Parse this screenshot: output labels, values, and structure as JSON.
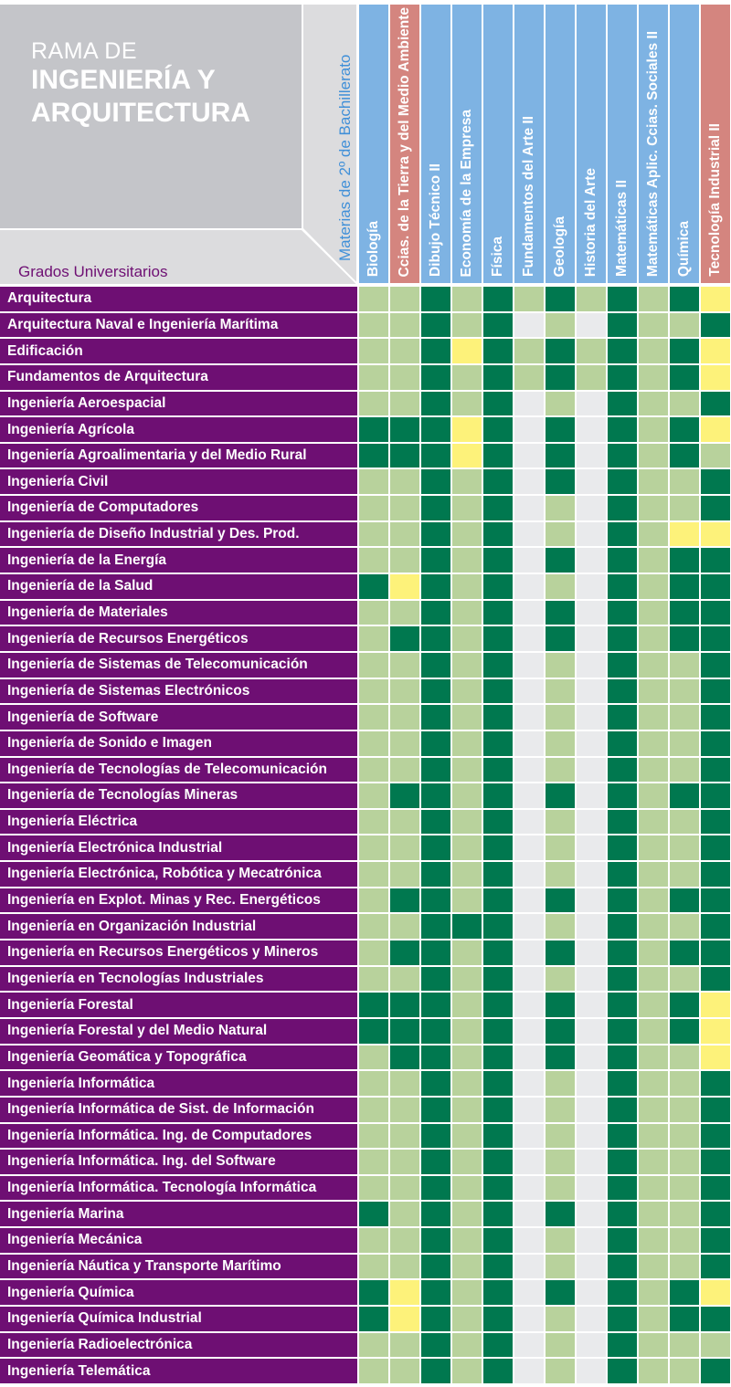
{
  "header": {
    "rama_line1": "RAMA DE",
    "rama_line2": "INGENIERÍA Y",
    "rama_line3": "ARQUITECTURA",
    "row_header": "Grados Universitarios",
    "col_header": "Materias de 2º de Bachillerato"
  },
  "colors": {
    "dark": "#00784f",
    "light": "#b8d29c",
    "yellow": "#fdf27a",
    "gray": "#e9eaec",
    "purple": "#6e0f73",
    "header_blue": "#7eb3e3",
    "header_red": "#d4857f"
  },
  "subjects": [
    {
      "label": "Biología",
      "color": "blue"
    },
    {
      "label": "Ccias. de la Tierra y del Medio Ambiente",
      "color": "red"
    },
    {
      "label": "Dibujo Técnico II",
      "color": "blue"
    },
    {
      "label": "Economía de la Empresa",
      "color": "blue"
    },
    {
      "label": "Física",
      "color": "blue"
    },
    {
      "label": "Fundamentos del Arte II",
      "color": "blue"
    },
    {
      "label": "Geología",
      "color": "blue"
    },
    {
      "label": "Historia del Arte",
      "color": "blue"
    },
    {
      "label": "Matemáticas II",
      "color": "blue"
    },
    {
      "label": "Matemáticas Aplic. Ccias. Sociales II",
      "color": "blue"
    },
    {
      "label": "Química",
      "color": "blue"
    },
    {
      "label": "Tecnología Industrial II",
      "color": "red"
    }
  ],
  "degrees": [
    {
      "name": "Arquitectura",
      "cells": [
        "light",
        "light",
        "dark",
        "light",
        "dark",
        "light",
        "dark",
        "light",
        "dark",
        "light",
        "dark",
        "yellow"
      ]
    },
    {
      "name": "Arquitectura Naval e Ingeniería Marítima",
      "cells": [
        "light",
        "light",
        "dark",
        "light",
        "dark",
        "gray",
        "light",
        "gray",
        "dark",
        "light",
        "light",
        "dark"
      ]
    },
    {
      "name": "Edificación",
      "cells": [
        "light",
        "light",
        "dark",
        "yellow",
        "dark",
        "light",
        "dark",
        "light",
        "dark",
        "light",
        "dark",
        "yellow"
      ]
    },
    {
      "name": "Fundamentos de Arquitectura",
      "cells": [
        "light",
        "light",
        "dark",
        "light",
        "dark",
        "light",
        "dark",
        "light",
        "dark",
        "light",
        "dark",
        "yellow"
      ]
    },
    {
      "name": "Ingeniería Aeroespacial",
      "cells": [
        "light",
        "light",
        "dark",
        "light",
        "dark",
        "gray",
        "light",
        "gray",
        "dark",
        "light",
        "light",
        "dark"
      ]
    },
    {
      "name": "Ingeniería Agrícola",
      "cells": [
        "dark",
        "dark",
        "dark",
        "yellow",
        "dark",
        "gray",
        "dark",
        "gray",
        "dark",
        "light",
        "dark",
        "yellow"
      ]
    },
    {
      "name": "Ingeniería Agroalimentaria y del Medio Rural",
      "cells": [
        "dark",
        "dark",
        "dark",
        "yellow",
        "dark",
        "gray",
        "dark",
        "gray",
        "dark",
        "light",
        "dark",
        "light"
      ]
    },
    {
      "name": "Ingeniería Civil",
      "cells": [
        "light",
        "light",
        "dark",
        "light",
        "dark",
        "gray",
        "dark",
        "gray",
        "dark",
        "light",
        "light",
        "dark"
      ]
    },
    {
      "name": "Ingeniería de Computadores",
      "cells": [
        "light",
        "light",
        "dark",
        "light",
        "dark",
        "gray",
        "light",
        "gray",
        "dark",
        "light",
        "light",
        "dark"
      ]
    },
    {
      "name": "Ingeniería de Diseño Industrial y Des. Prod.",
      "cells": [
        "light",
        "light",
        "dark",
        "light",
        "dark",
        "gray",
        "light",
        "gray",
        "dark",
        "light",
        "yellow",
        "yellow"
      ]
    },
    {
      "name": "Ingeniería de la Energía",
      "cells": [
        "light",
        "light",
        "dark",
        "light",
        "dark",
        "gray",
        "dark",
        "gray",
        "dark",
        "light",
        "dark",
        "dark"
      ]
    },
    {
      "name": "Ingeniería de la Salud",
      "cells": [
        "dark",
        "yellow",
        "dark",
        "light",
        "dark",
        "gray",
        "light",
        "gray",
        "dark",
        "light",
        "dark",
        "dark"
      ]
    },
    {
      "name": "Ingeniería de Materiales",
      "cells": [
        "light",
        "light",
        "dark",
        "light",
        "dark",
        "gray",
        "dark",
        "gray",
        "dark",
        "light",
        "dark",
        "dark"
      ]
    },
    {
      "name": "Ingeniería de Recursos Energéticos",
      "cells": [
        "light",
        "dark",
        "dark",
        "light",
        "dark",
        "gray",
        "dark",
        "gray",
        "dark",
        "light",
        "dark",
        "dark"
      ]
    },
    {
      "name": "Ingeniería de Sistemas de Telecomunicación",
      "cells": [
        "light",
        "light",
        "dark",
        "light",
        "dark",
        "gray",
        "light",
        "gray",
        "dark",
        "light",
        "light",
        "dark"
      ]
    },
    {
      "name": "Ingeniería de Sistemas Electrónicos",
      "cells": [
        "light",
        "light",
        "dark",
        "light",
        "dark",
        "gray",
        "light",
        "gray",
        "dark",
        "light",
        "light",
        "dark"
      ]
    },
    {
      "name": "Ingeniería de Software",
      "cells": [
        "light",
        "light",
        "dark",
        "light",
        "dark",
        "gray",
        "light",
        "gray",
        "dark",
        "light",
        "light",
        "dark"
      ]
    },
    {
      "name": "Ingeniería de Sonido e Imagen",
      "cells": [
        "light",
        "light",
        "dark",
        "light",
        "dark",
        "gray",
        "light",
        "gray",
        "dark",
        "light",
        "light",
        "dark"
      ]
    },
    {
      "name": "Ingeniería de Tecnologías de Telecomunicación",
      "cells": [
        "light",
        "light",
        "dark",
        "light",
        "dark",
        "gray",
        "light",
        "gray",
        "dark",
        "light",
        "light",
        "dark"
      ]
    },
    {
      "name": "Ingeniería de Tecnologías Mineras",
      "cells": [
        "light",
        "dark",
        "dark",
        "light",
        "dark",
        "gray",
        "dark",
        "gray",
        "dark",
        "light",
        "dark",
        "dark"
      ]
    },
    {
      "name": "Ingeniería Eléctrica",
      "cells": [
        "light",
        "light",
        "dark",
        "light",
        "dark",
        "gray",
        "light",
        "gray",
        "dark",
        "light",
        "light",
        "dark"
      ]
    },
    {
      "name": "Ingeniería Electrónica Industrial",
      "cells": [
        "light",
        "light",
        "dark",
        "light",
        "dark",
        "gray",
        "light",
        "gray",
        "dark",
        "light",
        "light",
        "dark"
      ]
    },
    {
      "name": "Ingeniería Electrónica, Robótica y Mecatrónica",
      "cells": [
        "light",
        "light",
        "dark",
        "light",
        "dark",
        "gray",
        "light",
        "gray",
        "dark",
        "light",
        "light",
        "dark"
      ]
    },
    {
      "name": "Ingeniería en Explot. Minas y Rec. Energéticos",
      "cells": [
        "light",
        "dark",
        "dark",
        "light",
        "dark",
        "gray",
        "dark",
        "gray",
        "dark",
        "light",
        "dark",
        "dark"
      ]
    },
    {
      "name": "Ingeniería en Organización Industrial",
      "cells": [
        "light",
        "light",
        "dark",
        "dark",
        "dark",
        "gray",
        "light",
        "gray",
        "dark",
        "light",
        "light",
        "dark"
      ]
    },
    {
      "name": "Ingeniería en Recursos Energéticos y Mineros",
      "cells": [
        "light",
        "dark",
        "dark",
        "light",
        "dark",
        "gray",
        "dark",
        "gray",
        "dark",
        "light",
        "dark",
        "dark"
      ]
    },
    {
      "name": "Ingeniería en Tecnologías Industriales",
      "cells": [
        "light",
        "light",
        "dark",
        "light",
        "dark",
        "gray",
        "light",
        "gray",
        "dark",
        "light",
        "light",
        "dark"
      ]
    },
    {
      "name": "Ingeniería Forestal",
      "cells": [
        "dark",
        "dark",
        "dark",
        "light",
        "dark",
        "gray",
        "dark",
        "gray",
        "dark",
        "light",
        "dark",
        "yellow"
      ]
    },
    {
      "name": "Ingeniería Forestal y del Medio Natural",
      "cells": [
        "dark",
        "dark",
        "dark",
        "light",
        "dark",
        "gray",
        "dark",
        "gray",
        "dark",
        "light",
        "dark",
        "yellow"
      ]
    },
    {
      "name": "Ingeniería Geomática y Topográfica",
      "cells": [
        "light",
        "dark",
        "dark",
        "light",
        "dark",
        "gray",
        "dark",
        "gray",
        "dark",
        "light",
        "light",
        "yellow"
      ]
    },
    {
      "name": "Ingeniería Informática",
      "cells": [
        "light",
        "light",
        "dark",
        "light",
        "dark",
        "gray",
        "light",
        "gray",
        "dark",
        "light",
        "light",
        "dark"
      ]
    },
    {
      "name": "Ingeniería Informática de Sist. de Información",
      "cells": [
        "light",
        "light",
        "dark",
        "light",
        "dark",
        "gray",
        "light",
        "gray",
        "dark",
        "light",
        "light",
        "dark"
      ]
    },
    {
      "name": "Ingeniería Informática. Ing. de Computadores",
      "cells": [
        "light",
        "light",
        "dark",
        "light",
        "dark",
        "gray",
        "light",
        "gray",
        "dark",
        "light",
        "light",
        "dark"
      ]
    },
    {
      "name": "Ingeniería Informática. Ing. del Software",
      "cells": [
        "light",
        "light",
        "dark",
        "light",
        "dark",
        "gray",
        "light",
        "gray",
        "dark",
        "light",
        "light",
        "dark"
      ]
    },
    {
      "name": "Ingeniería Informática. Tecnología Informática",
      "cells": [
        "light",
        "light",
        "dark",
        "light",
        "dark",
        "gray",
        "light",
        "gray",
        "dark",
        "light",
        "light",
        "dark"
      ]
    },
    {
      "name": "Ingeniería Marina",
      "cells": [
        "dark",
        "light",
        "dark",
        "light",
        "dark",
        "gray",
        "dark",
        "gray",
        "dark",
        "light",
        "light",
        "dark"
      ]
    },
    {
      "name": "Ingeniería Mecánica",
      "cells": [
        "light",
        "light",
        "dark",
        "light",
        "dark",
        "gray",
        "light",
        "gray",
        "dark",
        "light",
        "light",
        "dark"
      ]
    },
    {
      "name": "Ingeniería Náutica y Transporte Marítimo",
      "cells": [
        "light",
        "light",
        "dark",
        "light",
        "dark",
        "gray",
        "light",
        "gray",
        "dark",
        "light",
        "light",
        "dark"
      ]
    },
    {
      "name": "Ingeniería Química",
      "cells": [
        "dark",
        "yellow",
        "dark",
        "light",
        "dark",
        "gray",
        "dark",
        "gray",
        "dark",
        "light",
        "dark",
        "yellow"
      ]
    },
    {
      "name": "Ingeniería Química Industrial",
      "cells": [
        "dark",
        "yellow",
        "dark",
        "light",
        "dark",
        "gray",
        "light",
        "gray",
        "dark",
        "light",
        "dark",
        "dark"
      ]
    },
    {
      "name": "Ingeniería Radioelectrónica",
      "cells": [
        "light",
        "light",
        "dark",
        "light",
        "dark",
        "gray",
        "light",
        "gray",
        "dark",
        "light",
        "light",
        "light"
      ]
    },
    {
      "name": "Ingeniería Telemática",
      "cells": [
        "light",
        "light",
        "dark",
        "light",
        "dark",
        "gray",
        "light",
        "gray",
        "dark",
        "light",
        "light",
        "dark"
      ]
    }
  ]
}
